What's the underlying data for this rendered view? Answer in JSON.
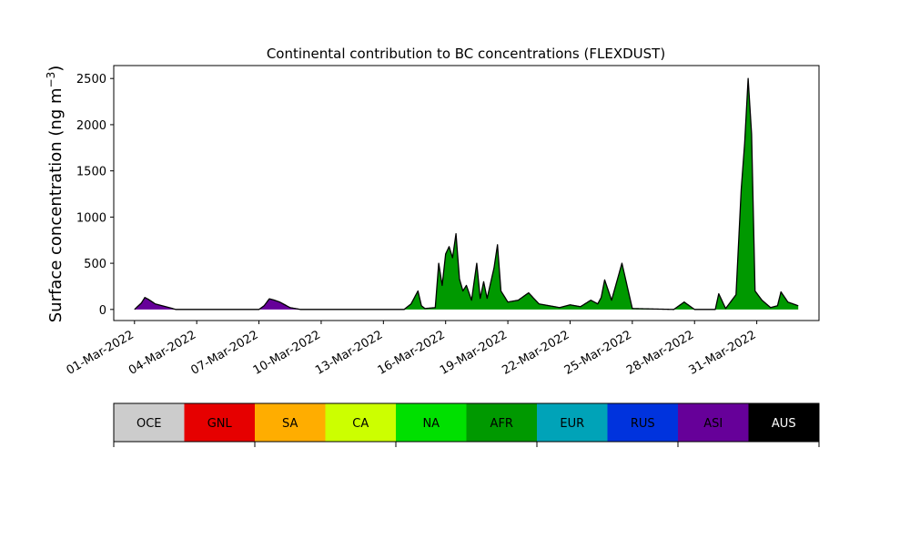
{
  "chart_data": {
    "type": "area",
    "stacked": true,
    "title": "Continental contribution to BC concentrations (FLEXDUST)",
    "ylabel": "Surface concentration (ng m",
    "ylabel_sup": "−3",
    "ylabel_close": ")",
    "xlabel": "",
    "ylim": [
      -120,
      2640
    ],
    "yticks": [
      0,
      500,
      1000,
      1500,
      2000,
      2500
    ],
    "xlim": [
      "2022-02-28T00:00",
      "2022-04-03T00:00"
    ],
    "xticks": [
      "2022-03-01",
      "2022-03-04",
      "2022-03-07",
      "2022-03-10",
      "2022-03-13",
      "2022-03-16",
      "2022-03-19",
      "2022-03-22",
      "2022-03-25",
      "2022-03-28",
      "2022-03-31"
    ],
    "xtick_labels": [
      "01-Mar-2022",
      "04-Mar-2022",
      "07-Mar-2022",
      "10-Mar-2022",
      "13-Mar-2022",
      "16-Mar-2022",
      "19-Mar-2022",
      "22-Mar-2022",
      "25-Mar-2022",
      "28-Mar-2022",
      "31-Mar-2022"
    ],
    "grid": false,
    "legend_position": "bottom",
    "series": [
      {
        "name": "ASI",
        "color": "#660099",
        "x": [
          "2022-03-01T00:00",
          "2022-03-01T08:00",
          "2022-03-01T12:00",
          "2022-03-01T16:00",
          "2022-03-02T00:00",
          "2022-03-02T12:00",
          "2022-03-03T00:00",
          "2022-03-04T00:00",
          "2022-03-06T12:00",
          "2022-03-07T00:00",
          "2022-03-07T06:00",
          "2022-03-07T12:00",
          "2022-03-07T18:00",
          "2022-03-08T00:00",
          "2022-03-08T12:00",
          "2022-03-09T00:00",
          "2022-04-02T00:00"
        ],
        "values": [
          0,
          70,
          130,
          110,
          60,
          30,
          0,
          0,
          0,
          0,
          40,
          115,
          100,
          80,
          20,
          0,
          0
        ]
      },
      {
        "name": "AFR",
        "color": "#009900",
        "x": [
          "2022-03-01T00:00",
          "2022-03-14T00:00",
          "2022-03-14T08:00",
          "2022-03-14T16:00",
          "2022-03-14T20:00",
          "2022-03-15T00:00",
          "2022-03-15T12:00",
          "2022-03-15T16:00",
          "2022-03-15T20:00",
          "2022-03-16T00:00",
          "2022-03-16T04:00",
          "2022-03-16T08:00",
          "2022-03-16T12:00",
          "2022-03-16T16:00",
          "2022-03-16T20:00",
          "2022-03-17T00:00",
          "2022-03-17T06:00",
          "2022-03-17T12:00",
          "2022-03-17T16:00",
          "2022-03-17T20:00",
          "2022-03-18T00:00",
          "2022-03-18T08:00",
          "2022-03-18T12:00",
          "2022-03-18T16:00",
          "2022-03-19T00:00",
          "2022-03-19T12:00",
          "2022-03-20T00:00",
          "2022-03-20T12:00",
          "2022-03-21T00:00",
          "2022-03-21T12:00",
          "2022-03-22T00:00",
          "2022-03-22T12:00",
          "2022-03-23T00:00",
          "2022-03-23T08:00",
          "2022-03-23T12:00",
          "2022-03-23T16:00",
          "2022-03-24T00:00",
          "2022-03-24T12:00",
          "2022-03-25T00:00",
          "2022-03-27T00:00",
          "2022-03-27T12:00",
          "2022-03-28T00:00",
          "2022-03-29T00:00",
          "2022-03-29T04:00",
          "2022-03-29T12:00",
          "2022-03-30T00:00",
          "2022-03-30T06:00",
          "2022-03-30T10:00",
          "2022-03-30T14:00",
          "2022-03-30T18:00",
          "2022-03-30T22:00",
          "2022-03-31T06:00",
          "2022-03-31T16:00",
          "2022-04-01T00:00",
          "2022-04-01T04:00",
          "2022-04-01T12:00",
          "2022-04-02T00:00"
        ],
        "values": [
          0,
          0,
          60,
          200,
          40,
          10,
          20,
          500,
          260,
          600,
          680,
          560,
          820,
          330,
          200,
          260,
          100,
          500,
          120,
          300,
          120,
          450,
          700,
          200,
          80,
          100,
          180,
          60,
          40,
          20,
          50,
          30,
          100,
          60,
          130,
          320,
          100,
          500,
          10,
          0,
          80,
          0,
          0,
          170,
          10,
          160,
          1300,
          1800,
          2500,
          1900,
          200,
          100,
          20,
          40,
          190,
          80,
          40
        ]
      }
    ],
    "legend_entries": [
      {
        "label": "OCE",
        "color": "#cccccc",
        "text_color": "#000000"
      },
      {
        "label": "GNL",
        "color": "#e60000",
        "text_color": "#000000"
      },
      {
        "label": "SA",
        "color": "#ffad00",
        "text_color": "#000000"
      },
      {
        "label": "CA",
        "color": "#ccff00",
        "text_color": "#000000"
      },
      {
        "label": "NA",
        "color": "#00e000",
        "text_color": "#000000"
      },
      {
        "label": "AFR",
        "color": "#009900",
        "text_color": "#000000"
      },
      {
        "label": "EUR",
        "color": "#00a3b8",
        "text_color": "#000000"
      },
      {
        "label": "RUS",
        "color": "#0033dd",
        "text_color": "#000000"
      },
      {
        "label": "ASI",
        "color": "#660099",
        "text_color": "#000000"
      },
      {
        "label": "AUS",
        "color": "#000000",
        "text_color": "#ffffff"
      }
    ]
  }
}
